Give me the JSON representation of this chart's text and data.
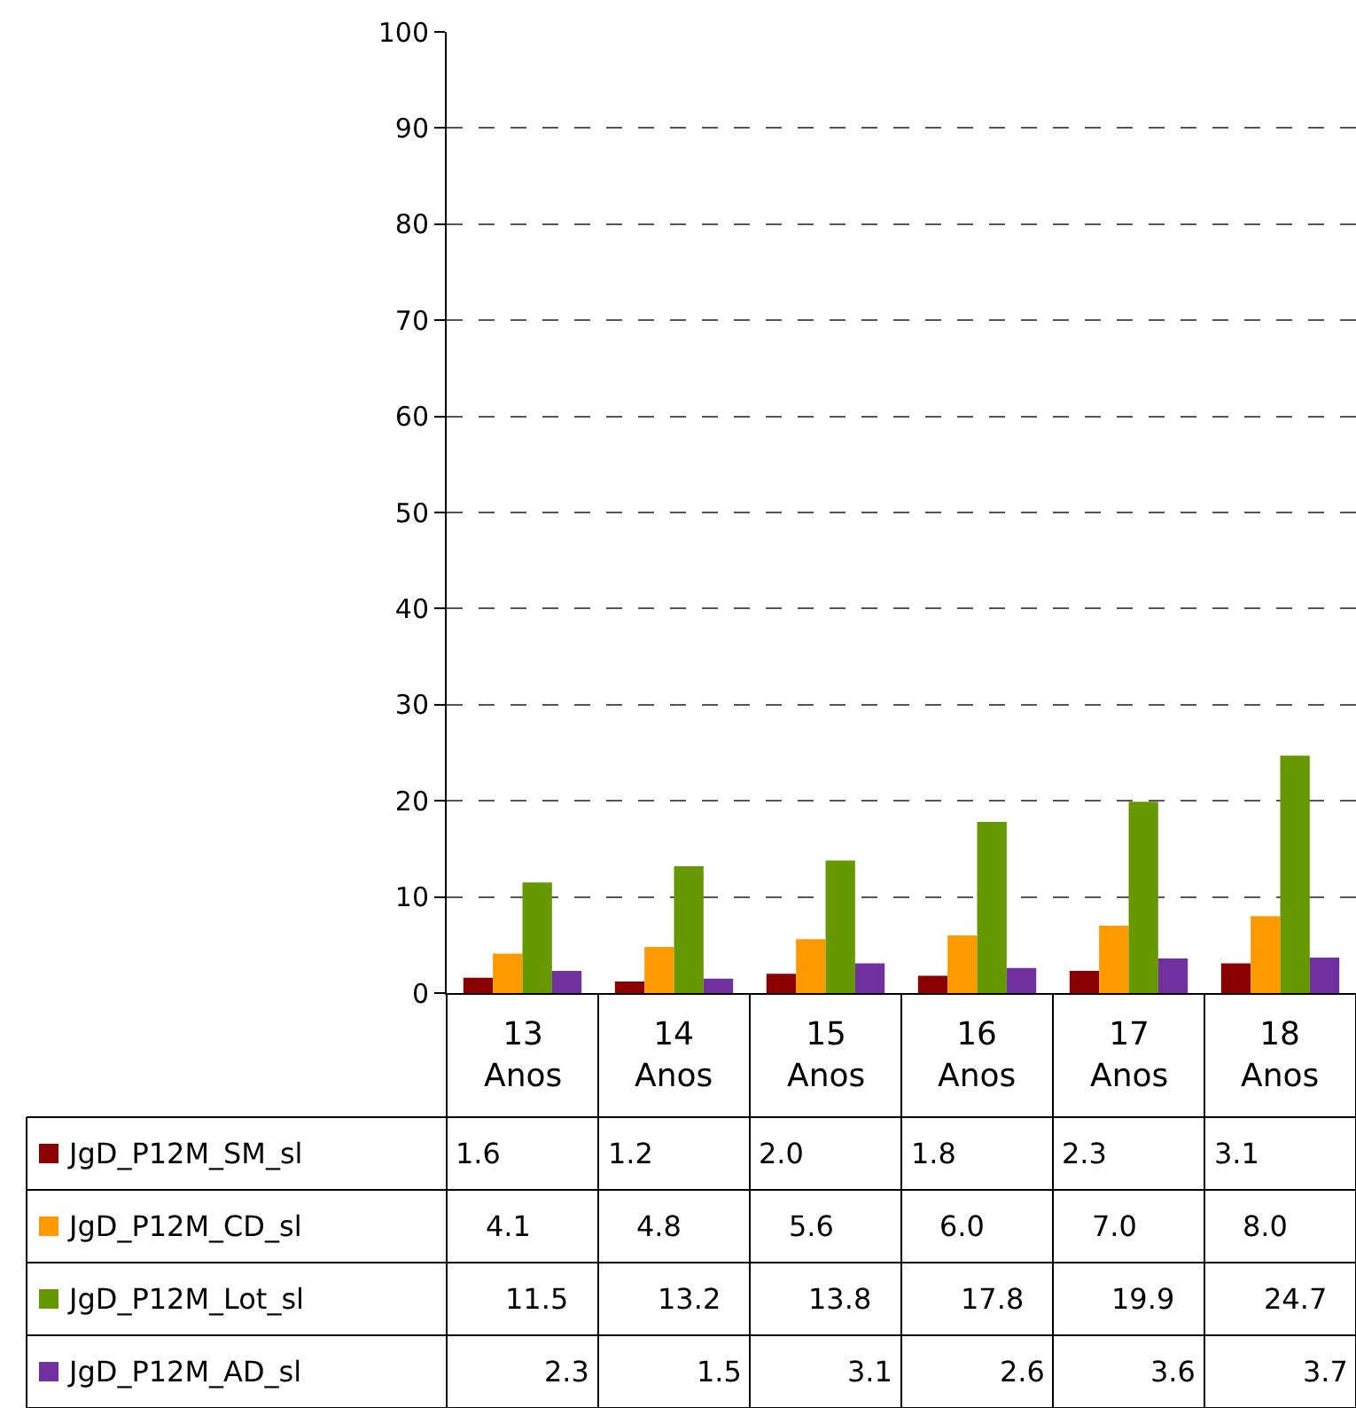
{
  "chart_data": {
    "type": "bar",
    "categories": [
      "13 Anos",
      "14 Anos",
      "15 Anos",
      "16 Anos",
      "17 Anos",
      "18 Anos"
    ],
    "series": [
      {
        "name": "JgD_P12M_SM_sl",
        "color": "#8b0000",
        "values": [
          1.6,
          1.2,
          2.0,
          1.8,
          2.3,
          3.1
        ],
        "value_labels": [
          "1.6",
          "1.2",
          "2.0",
          "1.8",
          "2.3",
          "3.1"
        ]
      },
      {
        "name": "JgD_P12M_CD_sl",
        "color": "#ff9900",
        "values": [
          4.1,
          4.8,
          5.6,
          6.0,
          7.0,
          8.0
        ],
        "value_labels": [
          "4.1",
          "4.8",
          "5.6",
          "6.0",
          "7.0",
          "8.0"
        ]
      },
      {
        "name": "JgD_P12M_Lot_sl",
        "color": "#669900",
        "values": [
          11.5,
          13.2,
          13.8,
          17.8,
          19.9,
          24.7
        ],
        "value_labels": [
          "11.5",
          "13.2",
          "13.8",
          "17.8",
          "19.9",
          "24.7"
        ]
      },
      {
        "name": "JgD_P12M_AD_sl",
        "color": "#7030a0",
        "values": [
          2.3,
          1.5,
          3.1,
          2.6,
          3.6,
          3.7
        ],
        "value_labels": [
          "2.3",
          "1.5",
          "3.1",
          "2.6",
          "3.6",
          "3.7"
        ]
      }
    ],
    "ylim": [
      0,
      100
    ],
    "yticks": [
      0,
      10,
      20,
      30,
      40,
      50,
      60,
      70,
      80,
      90,
      100
    ],
    "grid": "y",
    "legend": "bottom"
  }
}
